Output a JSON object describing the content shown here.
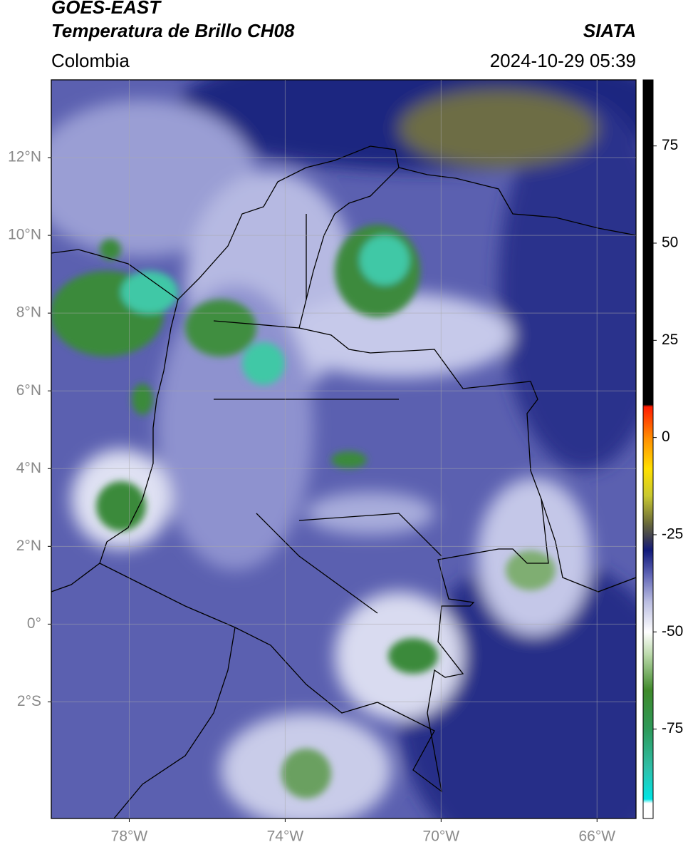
{
  "chart_data": {
    "type": "map",
    "title": "GOES-EAST",
    "subtitle": "Temperatura de Brillo CH08",
    "source": "SIATA",
    "region": "Colombia",
    "timestamp": "2024-10-29 05:39",
    "xlim": [
      -80,
      -65
    ],
    "ylim": [
      -5,
      14
    ],
    "xticks": [
      {
        "value": -78,
        "label": "78°W"
      },
      {
        "value": -74,
        "label": "74°W"
      },
      {
        "value": -70,
        "label": "70°W"
      },
      {
        "value": -66,
        "label": "66°W"
      }
    ],
    "yticks": [
      {
        "value": 12,
        "label": "12°N"
      },
      {
        "value": 10,
        "label": "10°N"
      },
      {
        "value": 8,
        "label": "8°N"
      },
      {
        "value": 6,
        "label": "6°N"
      },
      {
        "value": 4,
        "label": "4°N"
      },
      {
        "value": 2,
        "label": "2°N"
      },
      {
        "value": 0,
        "label": "0°"
      },
      {
        "value": -2,
        "label": "2°S"
      }
    ],
    "grid": true,
    "colorbar": {
      "lim": [
        -98,
        92
      ],
      "ticks": [
        75,
        50,
        25,
        0,
        -25,
        -50,
        -75
      ],
      "stops": [
        {
          "value": -98,
          "color": "#ffffff"
        },
        {
          "value": -94,
          "color": "#ffffff"
        },
        {
          "value": -93,
          "color": "#00e5e5"
        },
        {
          "value": -85,
          "color": "#2fbfa8"
        },
        {
          "value": -75,
          "color": "#2e9a5a"
        },
        {
          "value": -65,
          "color": "#3f8a2a"
        },
        {
          "value": -56,
          "color": "#b9d8a8"
        },
        {
          "value": -50,
          "color": "#ffffff"
        },
        {
          "value": -42,
          "color": "#b8bbe0"
        },
        {
          "value": -35,
          "color": "#5c61b3"
        },
        {
          "value": -29,
          "color": "#111a7a"
        },
        {
          "value": -26,
          "color": "#3a3a55"
        },
        {
          "value": -22,
          "color": "#6b6b3a"
        },
        {
          "value": -15,
          "color": "#c8c830"
        },
        {
          "value": -8,
          "color": "#ffe000"
        },
        {
          "value": 0,
          "color": "#ff8c00"
        },
        {
          "value": 8,
          "color": "#ff1a00"
        },
        {
          "value": 8.5,
          "color": "#000000"
        },
        {
          "value": 92,
          "color": "#000000"
        }
      ]
    }
  }
}
